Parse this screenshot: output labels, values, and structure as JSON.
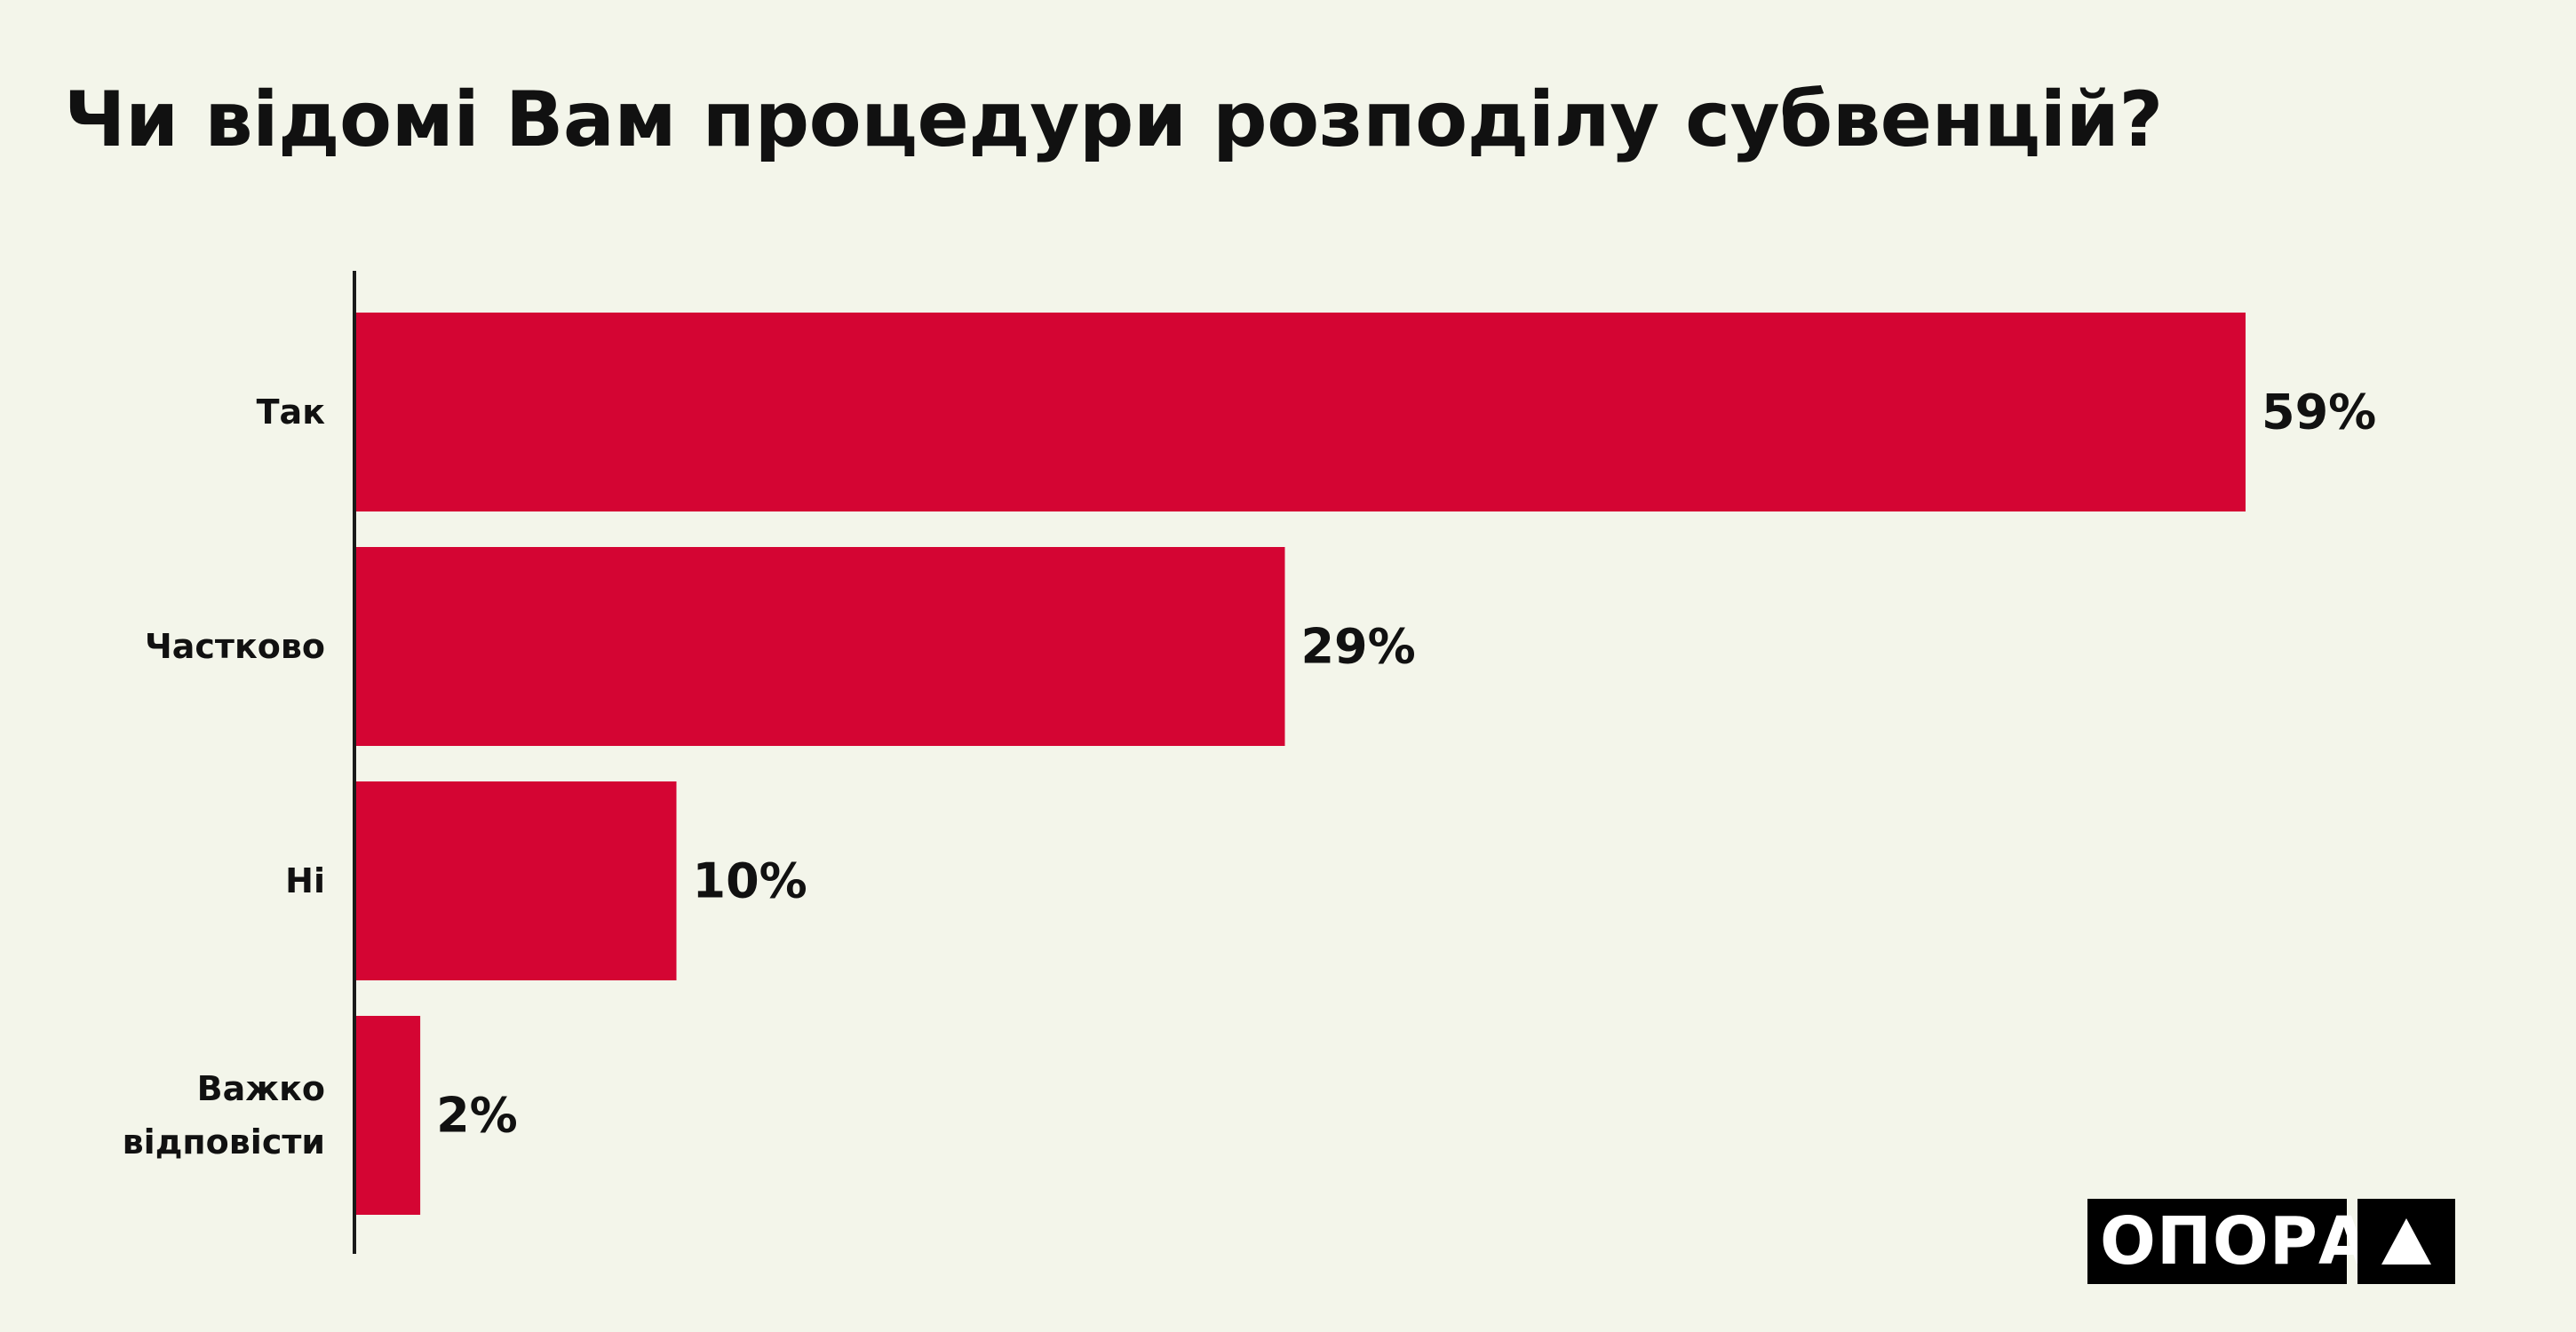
{
  "title": "Чи відомі Вам процедури розподілу субвенцій?",
  "chart_data": {
    "type": "bar",
    "orientation": "horizontal",
    "title": "Чи відомі Вам процедури розподілу субвенцій?",
    "categories": [
      [
        "Так"
      ],
      [
        "Частково"
      ],
      [
        "Ні"
      ],
      [
        "Важко",
        "відповісти"
      ]
    ],
    "values": [
      59,
      29,
      10,
      2
    ],
    "value_labels": [
      "59%",
      "29%",
      "10%",
      "2%"
    ],
    "xlim": [
      0,
      59
    ],
    "xlabel": "",
    "ylabel": "",
    "grid": false,
    "legend": "none",
    "bar_color": "#d40533"
  },
  "logo": {
    "text": "ОПОРА",
    "mark": "triangle-icon"
  },
  "colors": {
    "background": "#f3f5ea",
    "bar": "#d40533",
    "text": "#111111",
    "logo_bg": "#000000",
    "logo_fg": "#ffffff"
  }
}
